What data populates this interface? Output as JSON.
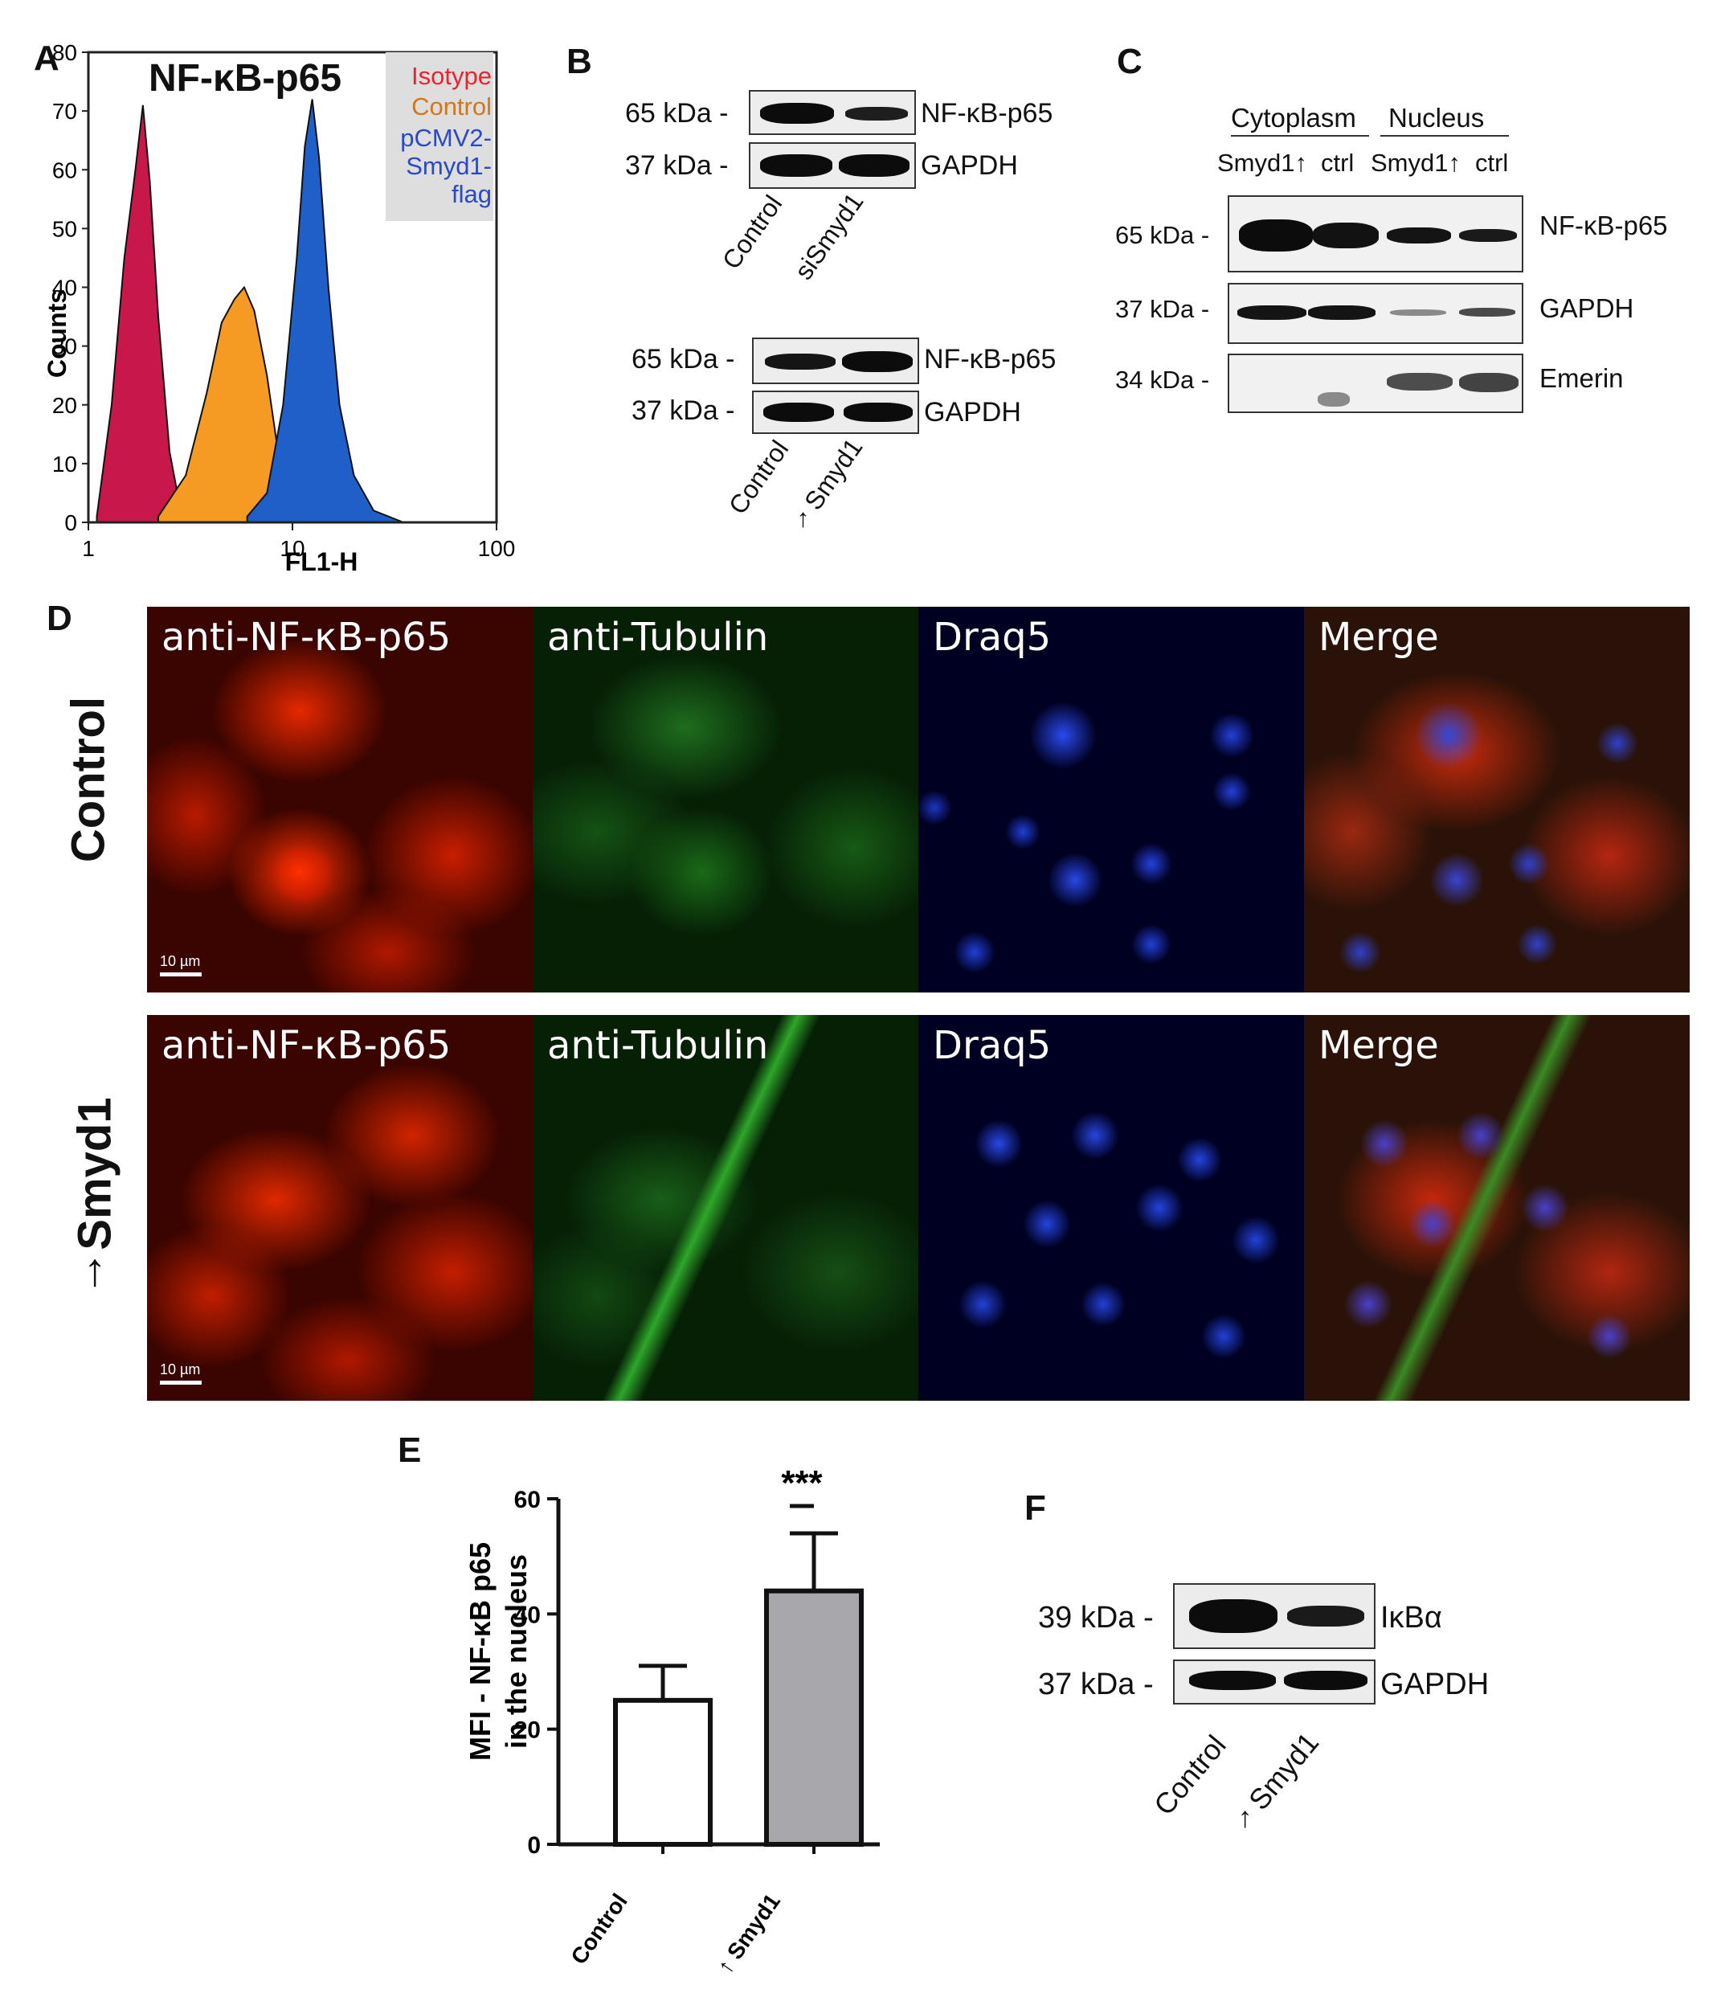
{
  "panels": {
    "A": "A",
    "B": "B",
    "C": "C",
    "D": "D",
    "E": "E",
    "F": "F"
  },
  "panelA": {
    "title": "NF-κB-p65",
    "xlabel": "FL1-H",
    "ylabel": "Counts",
    "legend": {
      "isotype": "Isotype",
      "control": "Control",
      "smyd1_l1": "pCMV2-",
      "smyd1_l2": "Smyd1-",
      "smyd1_l3": "flag"
    },
    "colors": {
      "isotype": "#c8174a",
      "control": "#f59a22",
      "smyd1": "#1f5fc8",
      "legend_isotype": "#e8242f",
      "legend_control": "#d4761b",
      "legend_smyd1": "#2a49c8",
      "legend_bg": "#dedede"
    },
    "yticks": [
      "0",
      "10",
      "20",
      "30",
      "40",
      "50",
      "60",
      "70",
      "80"
    ],
    "xticks": [
      "1",
      "10",
      "100"
    ]
  },
  "panelB": {
    "top": {
      "kda1": "65 kDa -",
      "kda2": "37 kDa -",
      "prot1": "NF-κB-p65",
      "prot2": "GAPDH",
      "lane1": "Control",
      "lane2": "siSmyd1"
    },
    "bottom": {
      "kda1": "65 kDa -",
      "kda2": "37 kDa -",
      "prot1": "NF-κB-p65",
      "prot2": "GAPDH",
      "lane1": "Control",
      "lane2": "Smyd1",
      "arrow": "↑"
    }
  },
  "panelC": {
    "group1": "Cytoplasm",
    "group2": "Nucleus",
    "lanes": [
      "Smyd1↑",
      "ctrl",
      "Smyd1↑",
      "ctrl"
    ],
    "kda": [
      "65 kDa -",
      "37 kDa -",
      "34 kDa -"
    ],
    "proteins": [
      "NF-κB-p65",
      "GAPDH",
      "Emerin"
    ]
  },
  "panelD": {
    "row1_label": "Control",
    "row2_label": "Smyd1",
    "row2_arrow": "↑",
    "channels": [
      "anti-NF-κB-p65",
      "anti-Tubulin",
      "Draq5",
      "Merge"
    ],
    "scalebar": "10 µm"
  },
  "panelE": {
    "ylabel_line1": "MFI - NF-κB p65",
    "ylabel_line2": "in the nucleus",
    "significance": "***",
    "yticks": [
      "0",
      "20",
      "40",
      "60"
    ],
    "cat1": "Control",
    "cat2": "Smyd1",
    "cat2_arrow": "↑"
  },
  "panelF": {
    "kda1": "39 kDa -",
    "kda2": "37 kDa -",
    "prot1": "IκBα",
    "prot2": "GAPDH",
    "lane1": "Control",
    "lane2": "Smyd1",
    "arrow": "↑"
  },
  "chart_data": [
    {
      "type": "area",
      "title": "NF-κB-p65",
      "xlabel": "FL1-H",
      "ylabel": "Counts",
      "xscale": "log",
      "xlim": [
        1,
        100
      ],
      "ylim": [
        0,
        80
      ],
      "legend_position": "top-right",
      "series": [
        {
          "name": "Isotype",
          "x": [
            1.1,
            1.3,
            1.5,
            1.7,
            1.85,
            2.0,
            2.2,
            2.5,
            2.8,
            3.2
          ],
          "y": [
            1,
            20,
            45,
            60,
            71,
            58,
            35,
            12,
            3,
            0
          ]
        },
        {
          "name": "Control",
          "x": [
            2.2,
            3.0,
            3.8,
            4.5,
            5.2,
            5.8,
            6.5,
            7.5,
            8.5,
            10,
            12
          ],
          "y": [
            1,
            8,
            22,
            34,
            38,
            40,
            36,
            25,
            12,
            3,
            0
          ]
        },
        {
          "name": "pCMV2-Smyd1-flag",
          "x": [
            6,
            7.5,
            9,
            10.5,
            11.5,
            12.5,
            13.5,
            15,
            17,
            20,
            25,
            35
          ],
          "y": [
            1,
            5,
            20,
            45,
            64,
            72,
            62,
            40,
            20,
            8,
            2,
            0
          ]
        }
      ]
    },
    {
      "type": "bar",
      "categories": [
        "Control",
        "↑ Smyd1"
      ],
      "values": [
        25,
        44
      ],
      "errors": [
        6,
        10
      ],
      "ylabel": "MFI - NF-κB p65 in the nucleus",
      "ylim": [
        0,
        60
      ],
      "annotation": "***"
    }
  ]
}
